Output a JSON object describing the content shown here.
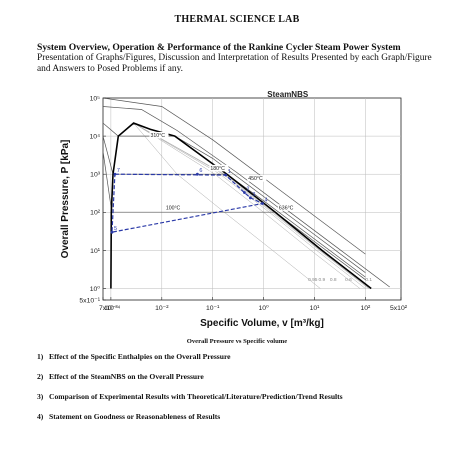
{
  "document": {
    "title": "THERMAL SCIENCE LAB",
    "subtitle": "System Overview, Operation & Performance of the Rankine Cycler Steam Power System",
    "intro": "Presentation of Graphs/Figures, Discussion and Interpretation of Results Presented by each Graph/Figure and Answers to Posed Problems if any.",
    "caption": "Overall Pressure vs Specific volume",
    "questions": [
      {
        "number": "1)",
        "text": "Effect of the Specific Enthalpies on the Overall Pressure"
      },
      {
        "number": "2)",
        "text": "Effect of the SteamNBS on the Overall Pressure"
      },
      {
        "number": "3)",
        "text": "Comparison of Experimental Results with Theoretical/Literature/Prediction/Trend Results"
      },
      {
        "number": "4)",
        "text": "Statement on Goodness or Reasonableness of Results"
      }
    ]
  },
  "chart_data": {
    "type": "line",
    "title": "SteamNBS",
    "xlabel": "Specific Volume, v [m³/kg]",
    "ylabel": "Overall Pressure, P [kPa]",
    "x_scale": "log",
    "y_scale": "log",
    "xlim": [
      0.0007,
      500
    ],
    "ylim": [
      0.5,
      100000
    ],
    "x_ticks": [
      "7x10⁻⁴",
      "10⁻³",
      "10⁻²",
      "10⁻¹",
      "10⁰",
      "10¹",
      "10²",
      "5x10²"
    ],
    "y_ticks": [
      "5x10⁻¹",
      "10⁰",
      "10¹",
      "10²",
      "10³",
      "10⁴",
      "10⁵"
    ],
    "isotherm_labels": [
      "310°C",
      "180°C",
      "100°C",
      "450°C",
      "636°C"
    ],
    "quality_labels": [
      "0.95",
      "0.9",
      "0.8",
      "0.6",
      "0.1"
    ],
    "state_points": [
      {
        "label": "1",
        "v": 0.18,
        "p": 950
      },
      {
        "label": "2",
        "v": 0.42,
        "p": 330
      },
      {
        "label": "3",
        "v": 0.55,
        "p": 240
      },
      {
        "label": "4",
        "v": 0.95,
        "p": 170
      },
      {
        "label": "5",
        "v": 0.00105,
        "p": 30
      },
      {
        "label": "6",
        "v": 0.05,
        "p": 1000
      },
      {
        "label": "7",
        "v": 0.0012,
        "p": 1000
      }
    ],
    "cycle_path": [
      [
        0.0012,
        1000
      ],
      [
        0.18,
        950
      ],
      [
        0.42,
        330
      ],
      [
        0.55,
        240
      ],
      [
        0.95,
        170
      ],
      [
        0.00105,
        30
      ],
      [
        0.0012,
        1000
      ]
    ],
    "saturation_dome": [
      [
        0.001,
        1
      ],
      [
        0.00102,
        100
      ],
      [
        0.0011,
        1000
      ],
      [
        0.0014,
        10000
      ],
      [
        0.0028,
        22000
      ],
      [
        0.006,
        15000
      ],
      [
        0.018,
        10000
      ],
      [
        0.19,
        1000
      ],
      [
        1.7,
        100
      ],
      [
        14,
        10
      ],
      [
        130,
        1
      ]
    ],
    "isotherms": [
      {
        "name": "310°C",
        "points": [
          [
            0.0007,
            22000
          ],
          [
            0.0014,
            10000
          ],
          [
            0.018,
            10000
          ],
          [
            0.1,
            2600
          ],
          [
            1,
            260
          ],
          [
            10,
            26
          ],
          [
            100,
            2.6
          ]
        ]
      },
      {
        "name": "180°C",
        "points": [
          [
            0.0007,
            10000
          ],
          [
            0.0011,
            1000
          ],
          [
            0.19,
            1000
          ],
          [
            1,
            200
          ],
          [
            10,
            20
          ],
          [
            100,
            2
          ]
        ]
      },
      {
        "name": "100°C",
        "points": [
          [
            0.0007,
            4000
          ],
          [
            0.00104,
            101
          ],
          [
            1.7,
            101
          ],
          [
            10,
            17
          ],
          [
            100,
            1.7
          ]
        ]
      },
      {
        "name": "450°C",
        "points": [
          [
            0.0007,
            60000
          ],
          [
            0.004,
            50000
          ],
          [
            0.02,
            14000
          ],
          [
            0.3,
            1100
          ],
          [
            3,
            110
          ],
          [
            30,
            11
          ],
          [
            300,
            1.1
          ]
        ]
      },
      {
        "name": "636°C",
        "points": [
          [
            0.0007,
            100000
          ],
          [
            0.01,
            60000
          ],
          [
            0.1,
            8000
          ],
          [
            1,
            800
          ],
          [
            10,
            80
          ],
          [
            100,
            8
          ]
        ]
      }
    ]
  }
}
